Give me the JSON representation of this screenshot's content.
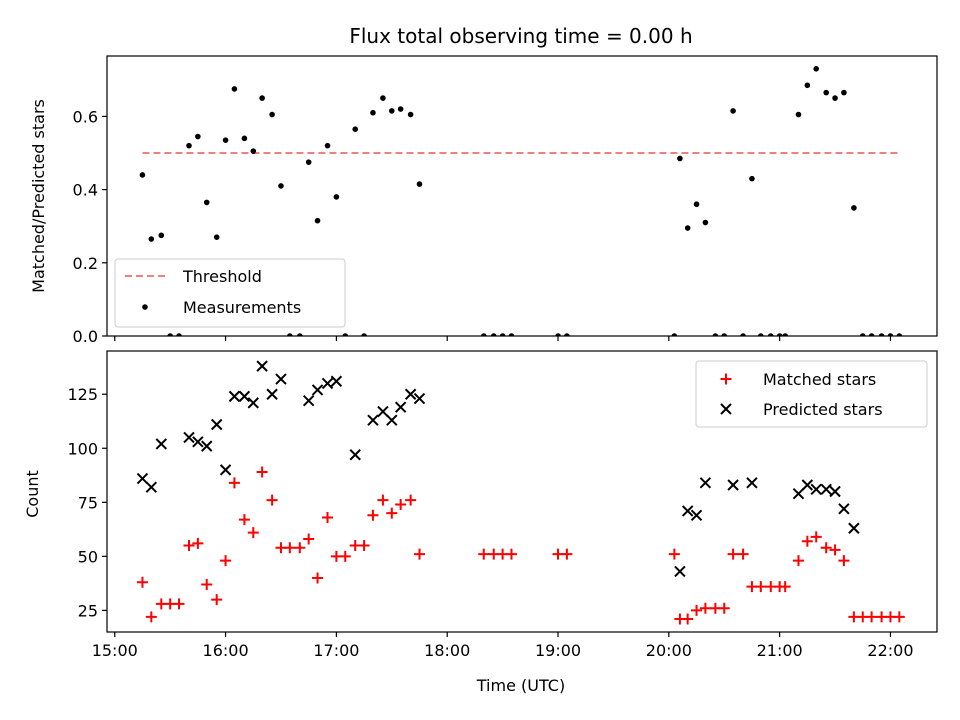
{
  "chart_data": [
    {
      "type": "scatter",
      "panel": "top",
      "title": "Flux total observing time = 0.00 h",
      "xlabel": "",
      "ylabel": "Matched/Predicted stars",
      "xlim": [
        14.93,
        22.42
      ],
      "ylim": [
        0,
        0.765
      ],
      "yticks": [
        0.0,
        0.2,
        0.4,
        0.6
      ],
      "ytick_labels": [
        "0.0",
        "0.2",
        "0.4",
        "0.6"
      ],
      "xticks": [
        15,
        16,
        17,
        18,
        19,
        20,
        21,
        22
      ],
      "legend": {
        "placement": "lower-left",
        "entries": [
          "Threshold",
          "Measurements"
        ]
      },
      "threshold": {
        "name": "Threshold",
        "value": 0.5,
        "x_range": [
          15.25,
          22.1
        ],
        "color": "#f08080"
      },
      "series": [
        {
          "name": "Measurements",
          "color": "#000000",
          "x": [
            15.25,
            15.33,
            15.42,
            15.5,
            15.58,
            15.67,
            15.75,
            15.83,
            15.92,
            16.0,
            16.08,
            16.17,
            16.25,
            16.33,
            16.42,
            16.5,
            16.58,
            16.67,
            16.75,
            16.83,
            16.92,
            17.0,
            17.08,
            17.17,
            17.25,
            17.33,
            17.42,
            17.5,
            17.58,
            17.67,
            17.75,
            18.33,
            18.42,
            18.5,
            18.58,
            19.0,
            19.08,
            20.05,
            20.1,
            20.17,
            20.25,
            20.33,
            20.42,
            20.5,
            20.58,
            20.67,
            20.75,
            20.83,
            20.92,
            21.0,
            21.05,
            21.17,
            21.25,
            21.33,
            21.42,
            21.5,
            21.58,
            21.67,
            21.75,
            21.83,
            21.92,
            22.0,
            22.08
          ],
          "y": [
            0.44,
            0.265,
            0.275,
            0.0,
            0.0,
            0.52,
            0.545,
            0.365,
            0.27,
            0.535,
            0.675,
            0.54,
            0.505,
            0.65,
            0.605,
            0.41,
            0.0,
            0.0,
            0.475,
            0.315,
            0.52,
            0.38,
            0.0,
            0.565,
            0.0,
            0.61,
            0.65,
            0.615,
            0.62,
            0.605,
            0.415,
            0.0,
            0.0,
            0.0,
            0.0,
            0.0,
            0.0,
            0.0,
            0.485,
            0.295,
            0.36,
            0.31,
            0.0,
            0.0,
            0.615,
            0.0,
            0.43,
            0.0,
            0.0,
            0.0,
            0.0,
            0.605,
            0.685,
            0.73,
            0.665,
            0.65,
            0.665,
            0.35,
            0.0,
            0.0,
            0.0,
            0.0,
            0.0
          ]
        }
      ]
    },
    {
      "type": "scatter",
      "panel": "bottom",
      "title": "",
      "xlabel": "Time (UTC)",
      "ylabel": "Count",
      "xlim": [
        14.93,
        22.42
      ],
      "ylim": [
        15,
        145
      ],
      "yticks": [
        25,
        50,
        75,
        100,
        125
      ],
      "ytick_labels": [
        "25",
        "50",
        "75",
        "100",
        "125"
      ],
      "xticks": [
        15,
        16,
        17,
        18,
        19,
        20,
        21,
        22
      ],
      "xtick_labels": [
        "15:00",
        "16:00",
        "17:00",
        "18:00",
        "19:00",
        "20:00",
        "21:00",
        "22:00"
      ],
      "legend": {
        "placement": "upper-right",
        "entries": [
          "Matched stars",
          "Predicted stars"
        ]
      },
      "series": [
        {
          "name": "Matched stars",
          "marker": "plus",
          "color": "#ff0000",
          "x": [
            15.25,
            15.33,
            15.42,
            15.5,
            15.58,
            15.67,
            15.75,
            15.83,
            15.92,
            16.0,
            16.08,
            16.17,
            16.25,
            16.33,
            16.42,
            16.5,
            16.58,
            16.67,
            16.75,
            16.83,
            16.92,
            17.0,
            17.08,
            17.17,
            17.25,
            17.33,
            17.42,
            17.5,
            17.58,
            17.67,
            17.75,
            18.33,
            18.42,
            18.5,
            18.58,
            19.0,
            19.08,
            20.05,
            20.1,
            20.17,
            20.25,
            20.33,
            20.42,
            20.5,
            20.58,
            20.67,
            20.75,
            20.83,
            20.92,
            21.0,
            21.05,
            21.17,
            21.25,
            21.33,
            21.42,
            21.5,
            21.58,
            21.67,
            21.75,
            21.83,
            21.92,
            22.0,
            22.08
          ],
          "y": [
            38,
            22,
            28,
            28,
            28,
            55,
            56,
            37,
            30,
            48,
            84,
            67,
            61,
            89,
            76,
            54,
            54,
            54,
            58,
            40,
            68,
            50,
            50,
            55,
            55,
            69,
            76,
            70,
            74,
            76,
            51,
            51,
            51,
            51,
            51,
            51,
            51,
            51,
            21,
            21,
            25,
            26,
            26,
            26,
            51,
            51,
            36,
            36,
            36,
            36,
            36,
            48,
            57,
            59,
            54,
            53,
            48,
            22,
            22,
            22,
            22,
            22,
            22
          ]
        },
        {
          "name": "Predicted stars",
          "marker": "x",
          "color": "#000000",
          "x": [
            15.25,
            15.33,
            15.42,
            15.67,
            15.75,
            15.83,
            15.92,
            16.0,
            16.08,
            16.17,
            16.25,
            16.33,
            16.42,
            16.5,
            16.75,
            16.83,
            16.92,
            17.0,
            17.17,
            17.33,
            17.42,
            17.5,
            17.58,
            17.67,
            17.75,
            20.1,
            20.17,
            20.25,
            20.33,
            20.58,
            20.75,
            21.17,
            21.25,
            21.33,
            21.42,
            21.5,
            21.58,
            21.67
          ],
          "y": [
            86,
            82,
            102,
            105,
            103,
            101,
            111,
            90,
            124,
            124,
            121,
            138,
            125,
            132,
            122,
            127,
            130,
            131,
            97,
            113,
            117,
            113,
            119,
            125,
            123,
            43,
            71,
            69,
            84,
            83,
            84,
            79,
            83,
            81,
            81,
            80,
            72,
            63
          ]
        }
      ]
    }
  ]
}
